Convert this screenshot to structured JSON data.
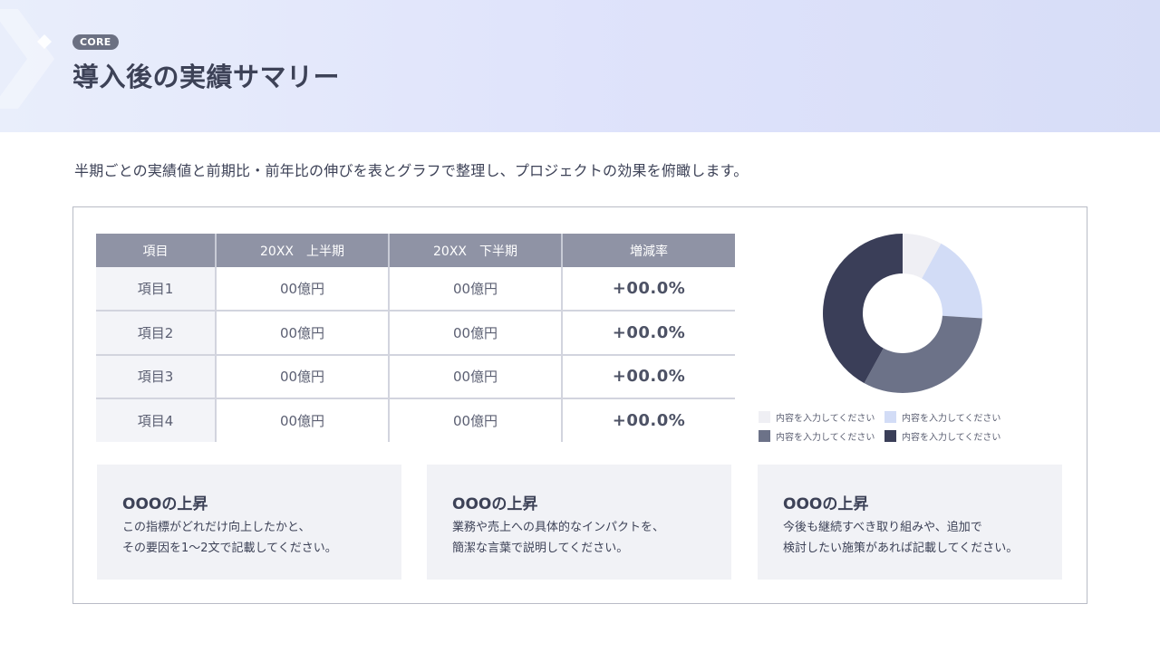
{
  "header": {
    "badge": "CORE",
    "title": "導入後の実績サマリー"
  },
  "subtitle": "半期ごとの実績値と前期比・前年比の伸びを表とグラフで整理し、プロジェクトの効果を俯瞰します。",
  "table": {
    "headers": [
      "項目",
      "20XX　上半期",
      "20XX　下半期",
      "増減率"
    ],
    "rows": [
      [
        "項目1",
        "00億円",
        "00億円",
        "+00.0%"
      ],
      [
        "項目2",
        "00億円",
        "00億円",
        "+00.0%"
      ],
      [
        "項目3",
        "00億円",
        "00億円",
        "+00.0%"
      ],
      [
        "項目4",
        "00億円",
        "00億円",
        "+00.0%"
      ]
    ]
  },
  "chart_data": {
    "type": "pie",
    "donut": true,
    "title": "",
    "series": [
      {
        "name": "内容を入力してください",
        "value": 8,
        "color": "#efeff4"
      },
      {
        "name": "内容を入力してください",
        "value": 18,
        "color": "#d2dcf6"
      },
      {
        "name": "内容を入力してください",
        "value": 32,
        "color": "#6c7288"
      },
      {
        "name": "内容を入力してください",
        "value": 42,
        "color": "#3a3e58"
      }
    ],
    "legend_position": "bottom"
  },
  "cards": [
    {
      "title": "OOOの上昇",
      "line1": "この指標がどれだけ向上したかと、",
      "line2": "その要因を1～2文で記載してください。"
    },
    {
      "title": "OOOの上昇",
      "line1": "業務や売上への具体的なインパクトを、",
      "line2": "簡潔な言葉で説明してください。"
    },
    {
      "title": "OOOの上昇",
      "line1": "今後も継続すべき取り組みや、追加で",
      "line2": "検討したい施策があれば記載してください。"
    }
  ]
}
